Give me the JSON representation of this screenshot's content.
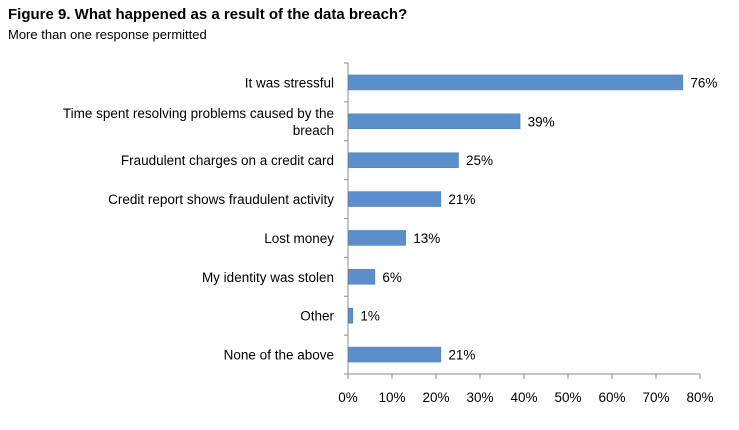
{
  "title": "Figure 9. What happened as a result of the data breach?",
  "subtitle": "More than one response permitted",
  "colors": {
    "bar": "#5B8FCB",
    "bar_edge": "#4A7CB8",
    "axis": "#8C8C8C"
  },
  "chart_data": {
    "type": "bar",
    "orientation": "horizontal",
    "categories": [
      "It was stressful",
      "Time spent resolving problems caused by the breach",
      "Fraudulent charges on a credit card",
      "Credit report shows fraudulent activity",
      "Lost money",
      "My identity was stolen",
      "Other",
      "None of the above"
    ],
    "category_lines": [
      [
        "It was stressful"
      ],
      [
        "Time spent resolving problems caused by the",
        "breach"
      ],
      [
        "Fraudulent charges on a credit card"
      ],
      [
        "Credit report shows fraudulent activity"
      ],
      [
        "Lost money"
      ],
      [
        "My identity was stolen"
      ],
      [
        "Other"
      ],
      [
        "None of the above"
      ]
    ],
    "values": [
      76,
      39,
      25,
      21,
      13,
      6,
      1,
      21
    ],
    "value_labels": [
      "76%",
      "39%",
      "25%",
      "21%",
      "13%",
      "6%",
      "1%",
      "21%"
    ],
    "xlim": [
      0,
      80
    ],
    "xticks": [
      0,
      10,
      20,
      30,
      40,
      50,
      60,
      70,
      80
    ],
    "xtick_labels": [
      "0%",
      "10%",
      "20%",
      "30%",
      "40%",
      "50%",
      "60%",
      "70%",
      "80%"
    ],
    "grid": false,
    "legend": "none"
  }
}
